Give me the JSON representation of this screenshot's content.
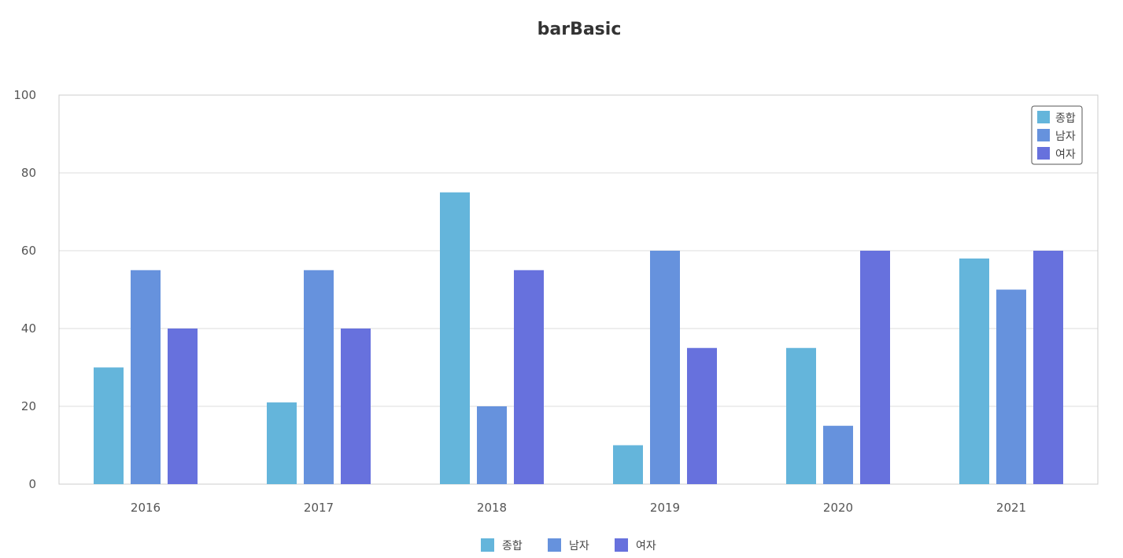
{
  "chart_data": {
    "type": "bar",
    "title": "barBasic",
    "xlabel": "",
    "ylabel": "",
    "categories": [
      "2016",
      "2017",
      "2018",
      "2019",
      "2020",
      "2021"
    ],
    "series": [
      {
        "name": "종합",
        "color": "#64b5db",
        "values": [
          30,
          21,
          75,
          10,
          35,
          58
        ]
      },
      {
        "name": "남자",
        "color": "#6692dd",
        "values": [
          55,
          55,
          20,
          60,
          15,
          50
        ]
      },
      {
        "name": "여자",
        "color": "#6771dd",
        "values": [
          40,
          40,
          55,
          35,
          60,
          60
        ]
      }
    ],
    "ylim": [
      0,
      100
    ],
    "yticks": [
      0,
      20,
      40,
      60,
      80,
      100
    ],
    "grid": true,
    "legend": [
      "top-right",
      "bottom"
    ]
  }
}
